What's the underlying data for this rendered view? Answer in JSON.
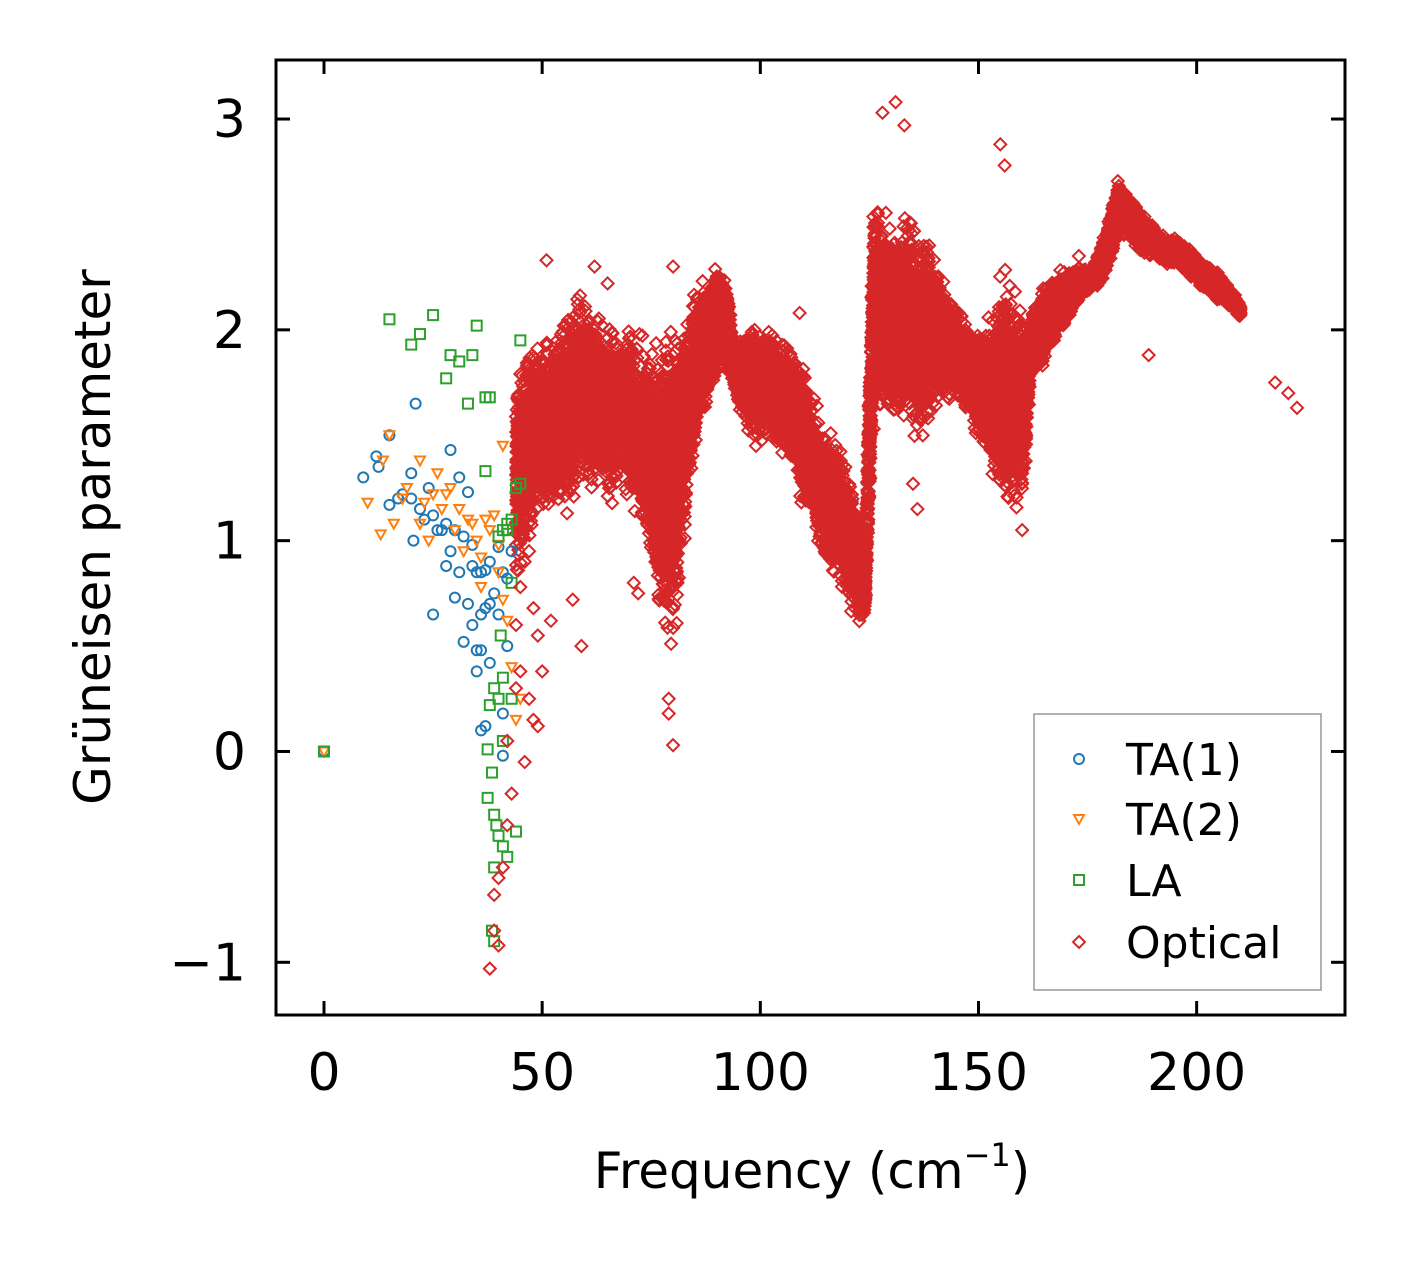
{
  "chart_data": {
    "type": "scatter",
    "title": "",
    "xlabel": "Frequency (cm",
    "xlabel_sup": "−1",
    "xlabel_close": ")",
    "ylabel": "Grüneisen parameter",
    "xlim": [
      -11,
      234
    ],
    "ylim": [
      -1.25,
      3.28
    ],
    "x_ticks": [
      0,
      50,
      100,
      150,
      200
    ],
    "x_tick_labels": [
      "0",
      "50",
      "100",
      "150",
      "200"
    ],
    "y_ticks": [
      -1,
      0,
      1,
      2,
      3
    ],
    "y_tick_labels": [
      "−1",
      "0",
      "1",
      "2",
      "3"
    ],
    "grid": false,
    "legend_position": "lower-right",
    "series": [
      {
        "name": "TA(1)",
        "marker": "circle",
        "color": "#1f77b4",
        "points": [
          [
            0,
            0
          ],
          [
            9,
            1.3
          ],
          [
            12,
            1.4
          ],
          [
            12.5,
            1.35
          ],
          [
            15,
            1.17
          ],
          [
            15,
            1.5
          ],
          [
            17,
            1.2
          ],
          [
            18,
            1.22
          ],
          [
            20,
            1.32
          ],
          [
            20,
            1.2
          ],
          [
            20.5,
            1.0
          ],
          [
            21,
            1.65
          ],
          [
            22,
            1.15
          ],
          [
            23,
            1.1
          ],
          [
            24,
            1.25
          ],
          [
            25,
            0.65
          ],
          [
            25,
            1.12
          ],
          [
            26,
            1.05
          ],
          [
            27,
            1.05
          ],
          [
            28,
            0.88
          ],
          [
            28,
            1.08
          ],
          [
            29,
            1.43
          ],
          [
            29,
            0.95
          ],
          [
            30,
            0.73
          ],
          [
            30,
            1.05
          ],
          [
            31,
            1.3
          ],
          [
            31,
            0.85
          ],
          [
            32,
            0.52
          ],
          [
            32,
            1.02
          ],
          [
            33,
            0.7
          ],
          [
            33,
            1.23
          ],
          [
            34,
            0.6
          ],
          [
            34,
            0.98
          ],
          [
            34,
            0.88
          ],
          [
            35,
            0.48
          ],
          [
            35,
            0.38
          ],
          [
            35,
            0.85
          ],
          [
            36,
            0.1
          ],
          [
            36,
            0.48
          ],
          [
            36,
            0.65
          ],
          [
            36,
            0.85
          ],
          [
            37,
            0.12
          ],
          [
            37,
            0.68
          ],
          [
            37,
            0.86
          ],
          [
            38,
            0.42
          ],
          [
            38,
            0.7
          ],
          [
            38,
            0.9
          ],
          [
            39,
            0.75
          ],
          [
            40,
            0.65
          ],
          [
            40,
            0.97
          ],
          [
            41,
            0.18
          ],
          [
            41,
            -0.02
          ],
          [
            41,
            0.85
          ],
          [
            42,
            0.82
          ],
          [
            42,
            0.5
          ],
          [
            43,
            0.95
          ]
        ]
      },
      {
        "name": "TA(2)",
        "marker": "triangle-down",
        "color": "#ff7f0e",
        "points": [
          [
            0,
            0
          ],
          [
            10,
            1.18
          ],
          [
            13,
            1.03
          ],
          [
            13.5,
            1.38
          ],
          [
            15,
            1.5
          ],
          [
            16,
            1.08
          ],
          [
            18,
            1.2
          ],
          [
            19,
            1.25
          ],
          [
            22,
            1.38
          ],
          [
            22,
            1.08
          ],
          [
            23,
            1.18
          ],
          [
            24,
            1.0
          ],
          [
            25,
            1.22
          ],
          [
            26,
            1.32
          ],
          [
            27,
            1.15
          ],
          [
            28,
            1.22
          ],
          [
            29,
            1.25
          ],
          [
            30,
            1.05
          ],
          [
            31,
            1.15
          ],
          [
            32,
            0.95
          ],
          [
            33,
            1.1
          ],
          [
            34,
            1.08
          ],
          [
            35,
            1.0
          ],
          [
            36,
            0.92
          ],
          [
            36,
            0.78
          ],
          [
            37,
            1.1
          ],
          [
            38,
            1.05
          ],
          [
            39,
            1.12
          ],
          [
            40,
            0.98
          ],
          [
            40,
            0.85
          ],
          [
            41,
            1.45
          ],
          [
            41,
            0.72
          ],
          [
            42,
            0.62
          ],
          [
            43,
            0.4
          ],
          [
            44,
            0.15
          ],
          [
            45,
            0.25
          ]
        ]
      },
      {
        "name": "LA",
        "marker": "square",
        "color": "#2ca02c",
        "points": [
          [
            0,
            0
          ],
          [
            15,
            2.05
          ],
          [
            20,
            1.93
          ],
          [
            22,
            1.98
          ],
          [
            25,
            2.07
          ],
          [
            28,
            1.77
          ],
          [
            29,
            1.88
          ],
          [
            31,
            1.85
          ],
          [
            33,
            1.65
          ],
          [
            34,
            1.88
          ],
          [
            35,
            2.02
          ],
          [
            37,
            1.33
          ],
          [
            37,
            1.68
          ],
          [
            38,
            1.68
          ],
          [
            37.5,
            0.01
          ],
          [
            37.5,
            -0.22
          ],
          [
            38,
            0.22
          ],
          [
            38.5,
            -0.1
          ],
          [
            39,
            0.3
          ],
          [
            39,
            -0.3
          ],
          [
            39,
            -0.55
          ],
          [
            38.5,
            -0.85
          ],
          [
            39,
            -0.9
          ],
          [
            39.5,
            -0.35
          ],
          [
            40,
            -0.4
          ],
          [
            40,
            0.25
          ],
          [
            40.5,
            0.55
          ],
          [
            41,
            -0.45
          ],
          [
            41,
            0.05
          ],
          [
            41,
            0.35
          ],
          [
            42,
            -0.5
          ],
          [
            42,
            1.05
          ],
          [
            43,
            0.25
          ],
          [
            43,
            0.8
          ],
          [
            44,
            -0.38
          ],
          [
            44,
            1.25
          ],
          [
            45,
            1.27
          ],
          [
            45,
            1.95
          ],
          [
            40,
            1.02
          ],
          [
            41,
            1.05
          ],
          [
            42,
            1.08
          ],
          [
            43,
            1.1
          ]
        ]
      },
      {
        "name": "Optical",
        "marker": "diamond",
        "color": "#d62728",
        "points": [
          [
            38,
            -1.03
          ],
          [
            39,
            -0.85
          ],
          [
            40,
            -0.92
          ],
          [
            39,
            -0.68
          ],
          [
            40,
            -0.6
          ],
          [
            41,
            -0.55
          ],
          [
            42,
            -0.35
          ],
          [
            43,
            -0.2
          ],
          [
            42,
            0.05
          ],
          [
            44,
            0.3
          ],
          [
            45,
            0.38
          ],
          [
            46,
            -0.05
          ],
          [
            47,
            0.25
          ],
          [
            48,
            0.15
          ],
          [
            49,
            0.12
          ],
          [
            50,
            0.38
          ],
          [
            44,
            0.6
          ],
          [
            45,
            0.78
          ],
          [
            46,
            0.9
          ],
          [
            47,
            0.95
          ],
          [
            48,
            0.68
          ],
          [
            49,
            0.55
          ],
          [
            51,
            2.33
          ],
          [
            52,
            0.62
          ],
          [
            57,
            0.72
          ],
          [
            59,
            0.5
          ],
          [
            62,
            2.3
          ],
          [
            65,
            2.22
          ],
          [
            71,
            0.8
          ],
          [
            72,
            0.75
          ],
          [
            79,
            0.25
          ],
          [
            79,
            0.18
          ],
          [
            80,
            0.03
          ],
          [
            80,
            2.3
          ],
          [
            99,
            1.45
          ],
          [
            109,
            2.08
          ],
          [
            116,
            0.92
          ],
          [
            126,
            1.53
          ],
          [
            128,
            3.03
          ],
          [
            131,
            3.08
          ],
          [
            133,
            2.97
          ],
          [
            135,
            1.27
          ],
          [
            136,
            1.15
          ],
          [
            155,
            2.88
          ],
          [
            156,
            2.78
          ],
          [
            160,
            1.05
          ],
          [
            173,
            2.35
          ],
          [
            186,
            2.4
          ],
          [
            189,
            1.88
          ],
          [
            205,
            2.2
          ],
          [
            210,
            2.07
          ],
          [
            218,
            1.75
          ],
          [
            221,
            1.7
          ],
          [
            223,
            1.63
          ]
        ],
        "envelope_note": "dense optical-branch cloud",
        "band": [
          [
            44,
            0.7,
            1.85
          ],
          [
            46,
            0.9,
            1.95
          ],
          [
            48,
            1.0,
            2.0
          ],
          [
            50,
            1.05,
            1.95
          ],
          [
            52,
            1.0,
            2.05
          ],
          [
            54,
            1.1,
            2.1
          ],
          [
            56,
            1.05,
            2.15
          ],
          [
            58,
            1.2,
            2.25
          ],
          [
            60,
            1.15,
            2.2
          ],
          [
            62,
            1.2,
            2.15
          ],
          [
            64,
            1.2,
            2.1
          ],
          [
            66,
            1.1,
            2.05
          ],
          [
            68,
            1.3,
            2.0
          ],
          [
            70,
            1.15,
            2.05
          ],
          [
            72,
            1.0,
            2.0
          ],
          [
            74,
            0.95,
            1.98
          ],
          [
            76,
            0.7,
            2.0
          ],
          [
            78,
            0.4,
            2.05
          ],
          [
            80,
            0.3,
            2.1
          ],
          [
            82,
            0.85,
            2.15
          ],
          [
            84,
            1.2,
            2.2
          ],
          [
            86,
            1.5,
            2.25
          ],
          [
            88,
            1.6,
            2.3
          ],
          [
            90,
            1.75,
            2.35
          ],
          [
            92,
            1.8,
            2.3
          ],
          [
            94,
            1.7,
            1.95
          ],
          [
            96,
            1.55,
            2.0
          ],
          [
            98,
            1.45,
            2.05
          ],
          [
            100,
            1.4,
            2.02
          ],
          [
            102,
            1.5,
            2.05
          ],
          [
            104,
            1.35,
            2.0
          ],
          [
            106,
            1.4,
            1.95
          ],
          [
            108,
            1.3,
            1.95
          ],
          [
            110,
            1.1,
            1.85
          ],
          [
            112,
            1.0,
            1.7
          ],
          [
            114,
            0.9,
            1.6
          ],
          [
            116,
            0.8,
            1.55
          ],
          [
            118,
            0.75,
            1.5
          ],
          [
            120,
            0.65,
            1.35
          ],
          [
            122,
            0.6,
            1.25
          ],
          [
            124,
            0.6,
            0.95
          ],
          [
            126,
            1.6,
            2.75
          ],
          [
            128,
            1.5,
            2.65
          ],
          [
            130,
            1.55,
            2.55
          ],
          [
            132,
            1.45,
            2.6
          ],
          [
            134,
            1.5,
            2.65
          ],
          [
            136,
            1.4,
            2.55
          ],
          [
            138,
            1.45,
            2.5
          ],
          [
            140,
            1.55,
            2.4
          ],
          [
            142,
            1.6,
            2.3
          ],
          [
            144,
            1.65,
            2.15
          ],
          [
            146,
            1.6,
            2.1
          ],
          [
            148,
            1.6,
            2.05
          ],
          [
            150,
            1.45,
            2.0
          ],
          [
            152,
            1.3,
            2.05
          ],
          [
            154,
            1.2,
            2.2
          ],
          [
            156,
            1.1,
            2.35
          ],
          [
            158,
            1.05,
            2.3
          ],
          [
            160,
            1.05,
            2.1
          ],
          [
            162,
            1.75,
            2.1
          ],
          [
            164,
            1.8,
            2.2
          ],
          [
            166,
            1.85,
            2.25
          ],
          [
            168,
            1.95,
            2.3
          ],
          [
            170,
            2.0,
            2.3
          ],
          [
            172,
            2.1,
            2.32
          ],
          [
            174,
            2.15,
            2.3
          ],
          [
            176,
            2.2,
            2.3
          ],
          [
            178,
            2.2,
            2.4
          ],
          [
            180,
            2.3,
            2.55
          ],
          [
            182,
            2.4,
            2.75
          ],
          [
            184,
            2.45,
            2.65
          ],
          [
            186,
            2.38,
            2.6
          ],
          [
            188,
            2.35,
            2.55
          ],
          [
            190,
            2.35,
            2.5
          ],
          [
            192,
            2.3,
            2.45
          ],
          [
            194,
            2.3,
            2.45
          ],
          [
            196,
            2.3,
            2.42
          ],
          [
            198,
            2.25,
            2.4
          ],
          [
            200,
            2.22,
            2.35
          ],
          [
            202,
            2.18,
            2.32
          ],
          [
            204,
            2.15,
            2.3
          ],
          [
            206,
            2.12,
            2.25
          ],
          [
            208,
            2.1,
            2.2
          ],
          [
            210,
            2.05,
            2.12
          ]
        ]
      }
    ]
  }
}
